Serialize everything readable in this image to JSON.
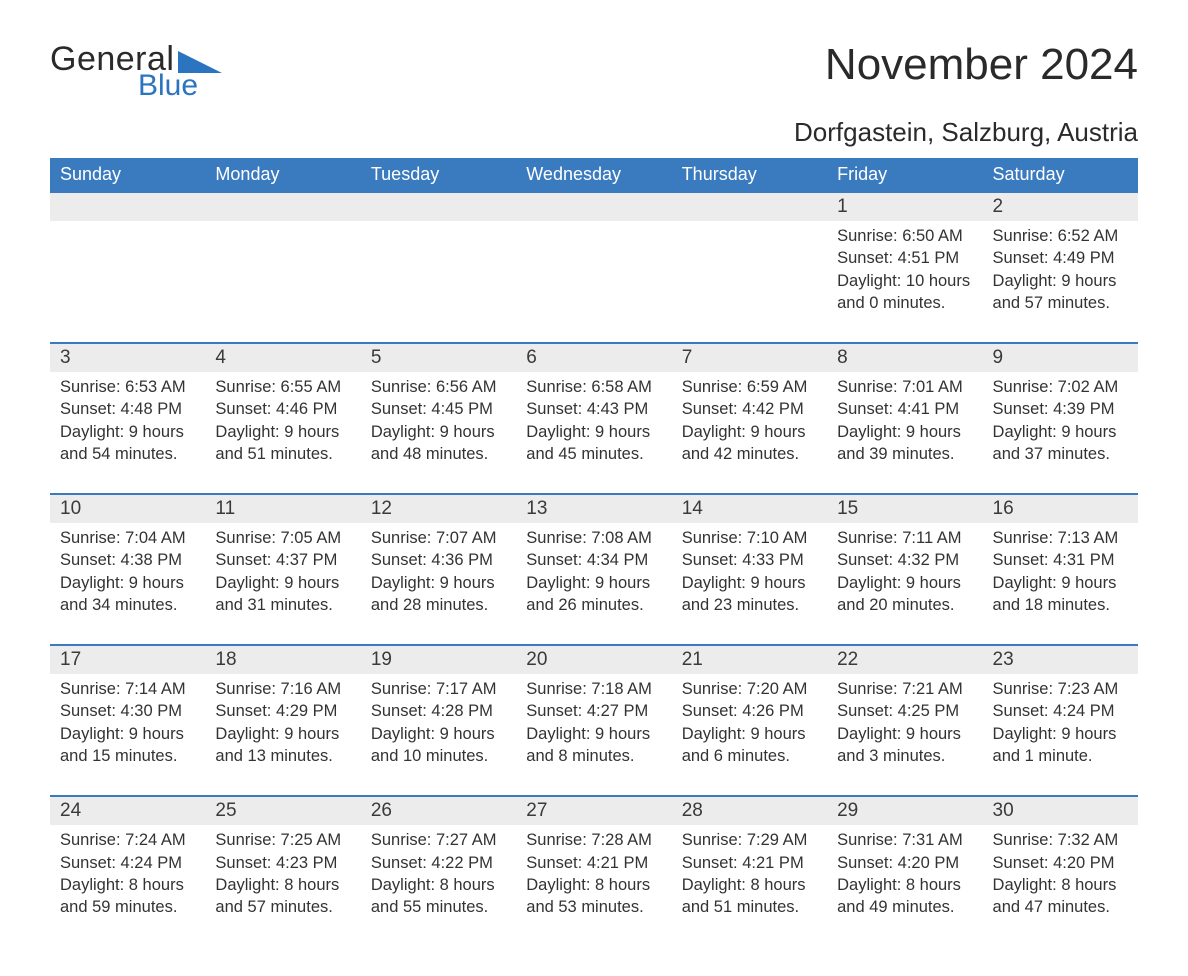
{
  "brand": {
    "word1": "General",
    "word2": "Blue",
    "triangle_color": "#2a74c0"
  },
  "title": "November 2024",
  "location": "Dorfgastein, Salzburg, Austria",
  "colors": {
    "header_bg": "#3a7abf",
    "header_text": "#ffffff",
    "row_divider": "#3a7abf",
    "daynum_bg": "#ececec",
    "page_bg": "#ffffff",
    "text": "#333333",
    "logo_blue": "#2a74c0"
  },
  "weekdays": [
    "Sunday",
    "Monday",
    "Tuesday",
    "Wednesday",
    "Thursday",
    "Friday",
    "Saturday"
  ],
  "weeks": [
    [
      null,
      null,
      null,
      null,
      null,
      {
        "n": "1",
        "sunrise": "6:50 AM",
        "sunset": "4:51 PM",
        "daylight": "10 hours and 0 minutes."
      },
      {
        "n": "2",
        "sunrise": "6:52 AM",
        "sunset": "4:49 PM",
        "daylight": "9 hours and 57 minutes."
      }
    ],
    [
      {
        "n": "3",
        "sunrise": "6:53 AM",
        "sunset": "4:48 PM",
        "daylight": "9 hours and 54 minutes."
      },
      {
        "n": "4",
        "sunrise": "6:55 AM",
        "sunset": "4:46 PM",
        "daylight": "9 hours and 51 minutes."
      },
      {
        "n": "5",
        "sunrise": "6:56 AM",
        "sunset": "4:45 PM",
        "daylight": "9 hours and 48 minutes."
      },
      {
        "n": "6",
        "sunrise": "6:58 AM",
        "sunset": "4:43 PM",
        "daylight": "9 hours and 45 minutes."
      },
      {
        "n": "7",
        "sunrise": "6:59 AM",
        "sunset": "4:42 PM",
        "daylight": "9 hours and 42 minutes."
      },
      {
        "n": "8",
        "sunrise": "7:01 AM",
        "sunset": "4:41 PM",
        "daylight": "9 hours and 39 minutes."
      },
      {
        "n": "9",
        "sunrise": "7:02 AM",
        "sunset": "4:39 PM",
        "daylight": "9 hours and 37 minutes."
      }
    ],
    [
      {
        "n": "10",
        "sunrise": "7:04 AM",
        "sunset": "4:38 PM",
        "daylight": "9 hours and 34 minutes."
      },
      {
        "n": "11",
        "sunrise": "7:05 AM",
        "sunset": "4:37 PM",
        "daylight": "9 hours and 31 minutes."
      },
      {
        "n": "12",
        "sunrise": "7:07 AM",
        "sunset": "4:36 PM",
        "daylight": "9 hours and 28 minutes."
      },
      {
        "n": "13",
        "sunrise": "7:08 AM",
        "sunset": "4:34 PM",
        "daylight": "9 hours and 26 minutes."
      },
      {
        "n": "14",
        "sunrise": "7:10 AM",
        "sunset": "4:33 PM",
        "daylight": "9 hours and 23 minutes."
      },
      {
        "n": "15",
        "sunrise": "7:11 AM",
        "sunset": "4:32 PM",
        "daylight": "9 hours and 20 minutes."
      },
      {
        "n": "16",
        "sunrise": "7:13 AM",
        "sunset": "4:31 PM",
        "daylight": "9 hours and 18 minutes."
      }
    ],
    [
      {
        "n": "17",
        "sunrise": "7:14 AM",
        "sunset": "4:30 PM",
        "daylight": "9 hours and 15 minutes."
      },
      {
        "n": "18",
        "sunrise": "7:16 AM",
        "sunset": "4:29 PM",
        "daylight": "9 hours and 13 minutes."
      },
      {
        "n": "19",
        "sunrise": "7:17 AM",
        "sunset": "4:28 PM",
        "daylight": "9 hours and 10 minutes."
      },
      {
        "n": "20",
        "sunrise": "7:18 AM",
        "sunset": "4:27 PM",
        "daylight": "9 hours and 8 minutes."
      },
      {
        "n": "21",
        "sunrise": "7:20 AM",
        "sunset": "4:26 PM",
        "daylight": "9 hours and 6 minutes."
      },
      {
        "n": "22",
        "sunrise": "7:21 AM",
        "sunset": "4:25 PM",
        "daylight": "9 hours and 3 minutes."
      },
      {
        "n": "23",
        "sunrise": "7:23 AM",
        "sunset": "4:24 PM",
        "daylight": "9 hours and 1 minute."
      }
    ],
    [
      {
        "n": "24",
        "sunrise": "7:24 AM",
        "sunset": "4:24 PM",
        "daylight": "8 hours and 59 minutes."
      },
      {
        "n": "25",
        "sunrise": "7:25 AM",
        "sunset": "4:23 PM",
        "daylight": "8 hours and 57 minutes."
      },
      {
        "n": "26",
        "sunrise": "7:27 AM",
        "sunset": "4:22 PM",
        "daylight": "8 hours and 55 minutes."
      },
      {
        "n": "27",
        "sunrise": "7:28 AM",
        "sunset": "4:21 PM",
        "daylight": "8 hours and 53 minutes."
      },
      {
        "n": "28",
        "sunrise": "7:29 AM",
        "sunset": "4:21 PM",
        "daylight": "8 hours and 51 minutes."
      },
      {
        "n": "29",
        "sunrise": "7:31 AM",
        "sunset": "4:20 PM",
        "daylight": "8 hours and 49 minutes."
      },
      {
        "n": "30",
        "sunrise": "7:32 AM",
        "sunset": "4:20 PM",
        "daylight": "8 hours and 47 minutes."
      }
    ]
  ],
  "labels": {
    "sunrise": "Sunrise: ",
    "sunset": "Sunset: ",
    "daylight": "Daylight: "
  }
}
